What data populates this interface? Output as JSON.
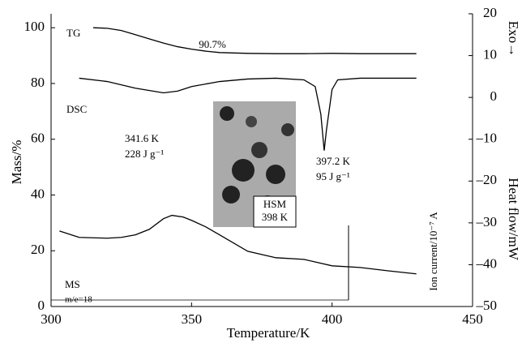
{
  "chart_data": {
    "type": "line",
    "xlabel": "Temperature/K",
    "ylabel": "Mass/%",
    "y2label": "Heat flow/mW",
    "y2note": "Exo→",
    "xlim": [
      300,
      450
    ],
    "xticks": [
      300,
      350,
      400,
      450
    ],
    "ylim": [
      0,
      105
    ],
    "yticks": [
      0,
      20,
      40,
      60,
      80,
      100
    ],
    "y2lim": [
      -50,
      20
    ],
    "y2ticks": [
      {
        "value": -50,
        "label": "–50"
      },
      {
        "value": -40,
        "label": "–40"
      },
      {
        "value": -30,
        "label": "–30"
      },
      {
        "value": -20,
        "label": "–20"
      },
      {
        "value": -10,
        "label": "–10"
      },
      0,
      10,
      20
    ],
    "series": [
      {
        "name": "TG",
        "color": "#000000",
        "x": [
          315,
          320,
          325,
          330,
          335,
          340,
          345,
          350,
          355,
          360,
          370,
          380,
          390,
          400,
          410,
          420,
          430
        ],
        "values": [
          100,
          99.8,
          99,
          97.5,
          96,
          94.5,
          93.2,
          92.3,
          91.6,
          91.1,
          90.8,
          90.7,
          90.7,
          90.8,
          90.7,
          90.7,
          90.7
        ]
      },
      {
        "name": "DSC",
        "color": "#000000",
        "axis": "y2",
        "x": [
          310,
          320,
          330,
          340,
          345,
          350,
          360,
          370,
          380,
          390,
          394,
          396,
          397.2,
          398,
          400,
          402,
          410,
          430
        ],
        "values": [
          4.6,
          3.8,
          2.2,
          1.1,
          1.5,
          2.6,
          3.8,
          4.4,
          4.6,
          4.2,
          2.6,
          -4.0,
          -12.7,
          -7.8,
          1.9,
          4.2,
          4.6,
          4.6
        ]
      },
      {
        "name": "MS",
        "color": "#000000",
        "x": [
          303,
          310,
          320,
          325,
          330,
          335,
          340,
          343,
          347,
          350,
          355,
          360,
          370,
          380,
          390,
          400,
          410,
          420,
          430
        ],
        "values": [
          27.1,
          24.8,
          24.5,
          24.8,
          25.7,
          27.7,
          31.5,
          32.7,
          32.1,
          30.9,
          28.6,
          25.7,
          19.8,
          17.5,
          16.9,
          14.6,
          14.0,
          12.8,
          11.7
        ]
      }
    ],
    "annotations": [
      "90.7%",
      "341.6 K",
      "228 J g⁻¹",
      "397.2 K",
      "95 J g⁻¹",
      "HSM",
      "398 K",
      "m/e=18",
      "Ion current/10⁻⁷ A"
    ]
  }
}
